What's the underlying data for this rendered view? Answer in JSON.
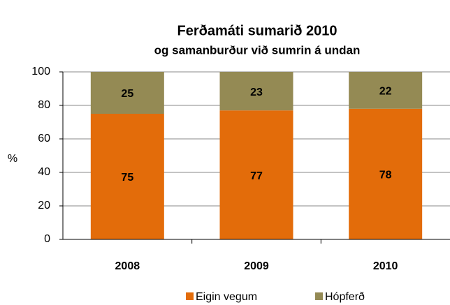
{
  "chart_data": {
    "type": "stacked_bar",
    "title": "Ferðamáti sumarið 2010",
    "subtitle": "og samanburður við sumrin á undan",
    "y_label": "%",
    "categories": [
      "2008",
      "2009",
      "2010"
    ],
    "series": [
      {
        "name": "Eigin vegum",
        "color": "#e36c0a",
        "values": [
          75,
          77,
          78
        ]
      },
      {
        "name": "Hópferð",
        "color": "#948a54",
        "values": [
          25,
          23,
          22
        ]
      }
    ],
    "ylim": [
      0,
      100
    ],
    "yticks": [
      0,
      20,
      40,
      60,
      80,
      100
    ],
    "grid": true,
    "legend": "bottom"
  }
}
